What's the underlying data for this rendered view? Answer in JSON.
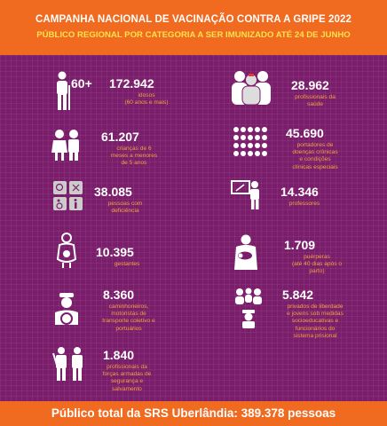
{
  "header": {
    "title": "CAMPANHA NACIONAL DE VACINAÇÃO CONTRA A GRIPE 2022",
    "subtitle": "PÚBLICO REGIONAL POR CATEGORIA A SER IMUNIZADO ATÉ 24 DE JUNHO"
  },
  "items": {
    "idosos": {
      "icon_text": "60+",
      "value": "172.942",
      "desc": "idosos\n(60 anos e mais)"
    },
    "saude": {
      "value": "28.962",
      "desc": "profissionais da\nsaúde"
    },
    "criancas": {
      "value": "61.207",
      "desc": "crianças de 6\nmeses a menores\nde 5 anos"
    },
    "cronicas": {
      "value": "45.690",
      "desc": "portadores de\ndoenças crônicas\ne condições\nclínicas especiais"
    },
    "deficiencia": {
      "value": "38.085",
      "desc": "pessoas com\ndeficiência"
    },
    "professores": {
      "value": "14.346",
      "desc": "professores"
    },
    "gestantes": {
      "value": "10.395",
      "desc": "gestantes"
    },
    "puerperas": {
      "value": "1.709",
      "desc": "puérperas\n(até 40 dias após o\nparto)"
    },
    "caminhoneiros": {
      "value": "8.360",
      "desc": "caminhoneiros,\nmotoristas de\ntransporte coletivo e\nportuários"
    },
    "prisional": {
      "value": "5.842",
      "desc": "privados de liberdade\ne jovens sob medidas\nsocioeducativas e\nfuncionários do\nsistema prisional"
    },
    "forcas": {
      "value": "1.840",
      "desc": "profissionais da\nforças armadas de\nsegurança e\nsalvamento"
    }
  },
  "footer": {
    "text": "Público total da SRS Uberlândia: 389.378 pessoas"
  },
  "colors": {
    "background": "#7a1d6a",
    "accent": "#f06a20",
    "highlight": "#ffe24d",
    "desc_text": "#f4a23a"
  }
}
